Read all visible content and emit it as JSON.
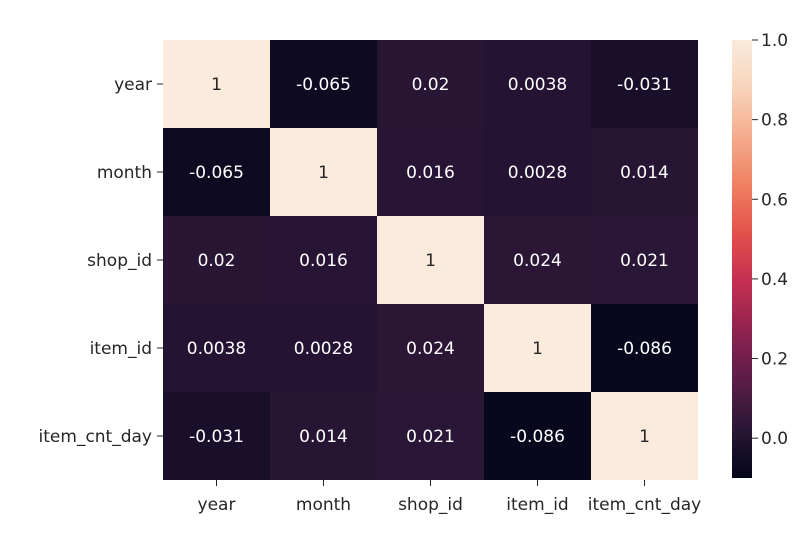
{
  "chart_data": {
    "type": "heatmap",
    "rows": [
      "year",
      "month",
      "shop_id",
      "item_id",
      "item_cnt_day"
    ],
    "columns": [
      "year",
      "month",
      "shop_id",
      "item_id",
      "item_cnt_day"
    ],
    "values": [
      [
        1,
        -0.065,
        0.02,
        0.0038,
        -0.031
      ],
      [
        -0.065,
        1,
        0.016,
        0.0028,
        0.014
      ],
      [
        0.02,
        0.016,
        1,
        0.024,
        0.021
      ],
      [
        0.0038,
        0.0028,
        0.024,
        1,
        -0.086
      ],
      [
        -0.031,
        0.014,
        0.021,
        -0.086,
        1
      ]
    ],
    "annotations": [
      [
        "1",
        "-0.065",
        "0.02",
        "0.0038",
        "-0.031"
      ],
      [
        "-0.065",
        "1",
        "0.016",
        "0.0028",
        "0.014"
      ],
      [
        "0.02",
        "0.016",
        "1",
        "0.024",
        "0.021"
      ],
      [
        "0.0038",
        "0.0028",
        "0.024",
        "1",
        "-0.086"
      ],
      [
        "-0.031",
        "0.014",
        "0.021",
        "-0.086",
        "1"
      ]
    ],
    "colorbar": {
      "range": [
        -0.1,
        1.0
      ],
      "ticks": [
        0.0,
        0.2,
        0.4,
        0.6,
        0.8,
        1.0
      ],
      "tick_labels": [
        "0.0",
        "0.2",
        "0.4",
        "0.6",
        "0.8",
        "1.0"
      ]
    },
    "colormap": {
      "name": "rocket",
      "stops": [
        "#03051a",
        "#2a1636",
        "#5a1c48",
        "#8f2350",
        "#c32e52",
        "#e34f4a",
        "#ef7f62",
        "#f4ab8c",
        "#f8d3bb",
        "#faebdd"
      ]
    },
    "title": "",
    "xlabel": "",
    "ylabel": ""
  }
}
